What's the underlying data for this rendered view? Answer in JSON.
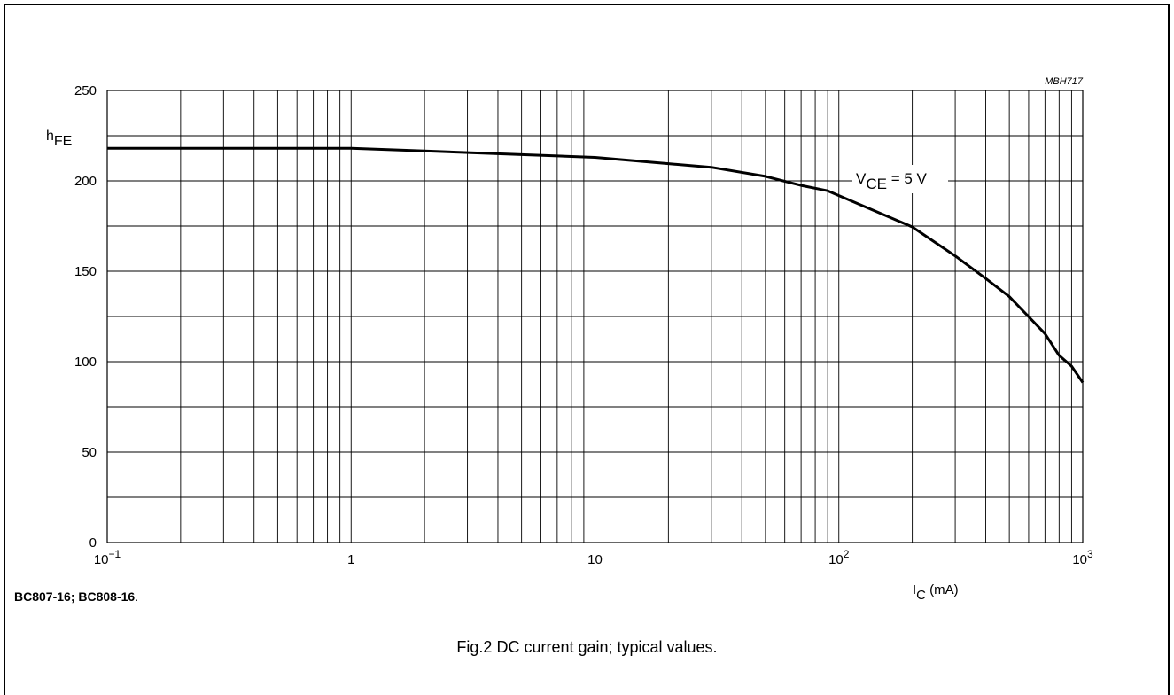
{
  "chart_data": {
    "type": "line",
    "x_scale": "log",
    "xlim": [
      0.1,
      1000
    ],
    "ylim": [
      0,
      250
    ],
    "grid": true,
    "code": "MBH717",
    "ylabel": {
      "main": "h",
      "sub": "FE"
    },
    "xlabel": {
      "main": "I",
      "sub": "C",
      "unit": " (mA)"
    },
    "x_ticks": [
      {
        "base": "10",
        "exp": "−1"
      },
      {
        "base": "1",
        "exp": ""
      },
      {
        "base": "10",
        "exp": ""
      },
      {
        "base": "10",
        "exp": "2"
      },
      {
        "base": "10",
        "exp": "3"
      }
    ],
    "y_ticks": [
      "0",
      "50",
      "100",
      "150",
      "200",
      "250"
    ],
    "curve_label": {
      "main": "V",
      "sub": "CE",
      "rest": " = 5 V"
    },
    "series": [
      {
        "x": [
          0.1,
          0.2,
          0.5,
          1,
          2,
          5,
          10,
          20,
          30,
          50,
          70,
          90,
          200,
          300,
          400,
          500,
          700,
          800,
          900,
          1000
        ],
        "y": [
          218,
          218,
          218,
          218,
          216.5,
          214.5,
          213,
          209.5,
          207.5,
          202.5,
          197.5,
          194.5,
          174.5,
          158.5,
          146,
          136,
          115.5,
          103.5,
          97.5,
          88.5
        ]
      }
    ]
  },
  "parts": {
    "bold": "BC807-16; BC808-16",
    "tail": "."
  },
  "caption": "Fig.2  DC current gain; typical values."
}
